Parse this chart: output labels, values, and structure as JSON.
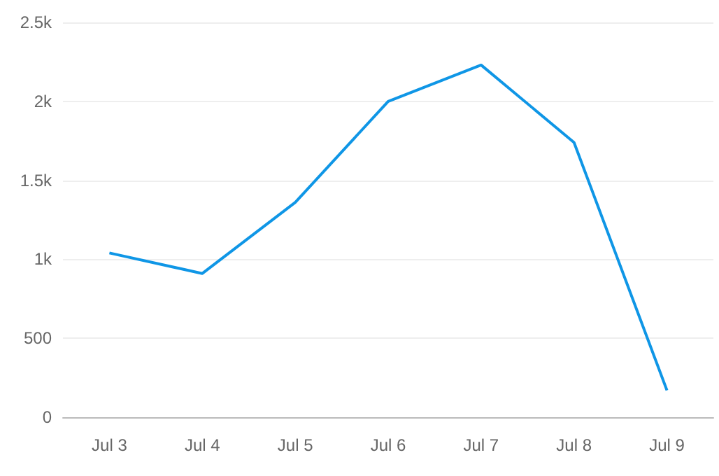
{
  "chart_data": {
    "type": "line",
    "categories": [
      "Jul 3",
      "Jul 4",
      "Jul 5",
      "Jul 6",
      "Jul 7",
      "Jul 8",
      "Jul 9"
    ],
    "series": [
      {
        "color": "#0f96e6",
        "values": [
          1040,
          910,
          1360,
          2000,
          2230,
          1740,
          170
        ]
      }
    ],
    "ylim": [
      0,
      2500
    ],
    "yticks": [
      {
        "value": 0,
        "label": "0"
      },
      {
        "value": 500,
        "label": "500"
      },
      {
        "value": 1000,
        "label": "1k"
      },
      {
        "value": 1500,
        "label": "1.5k"
      },
      {
        "value": 2000,
        "label": "2k"
      },
      {
        "value": 2500,
        "label": "2.5k"
      }
    ],
    "grid": "y",
    "marker": "none",
    "line_style": "solid"
  }
}
